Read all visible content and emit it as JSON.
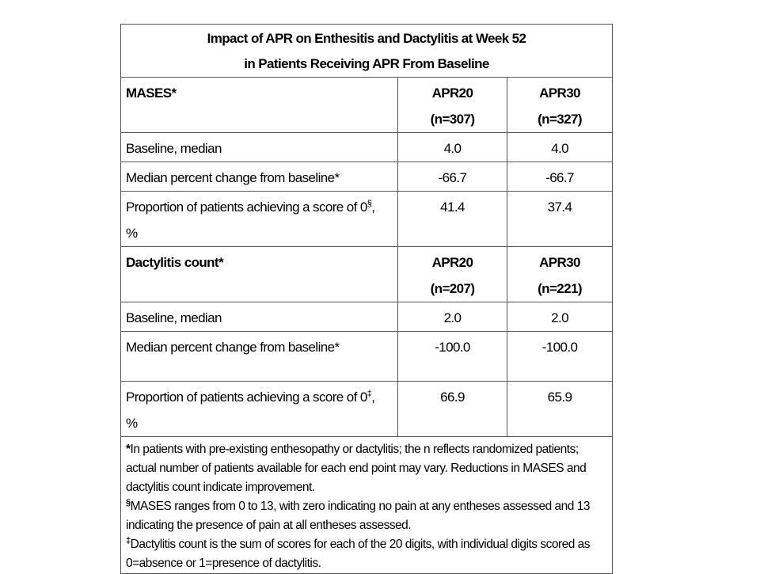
{
  "table": {
    "title": [
      "Impact of APR on Enthesitis and Dactylitis at Week 52",
      "in Patients Receiving APR From Baseline"
    ],
    "sections": [
      {
        "label": "MASES*",
        "columns": [
          [
            "APR20",
            "(n=307)"
          ],
          [
            "APR30",
            "(n=327)"
          ]
        ],
        "rows": [
          {
            "label": "Baseline, median",
            "values": [
              "4.0",
              "4.0"
            ]
          },
          {
            "label": "Median percent change from baseline*",
            "values": [
              "-66.7",
              "-66.7"
            ]
          },
          {
            "label": "Proportion of patients achieving a score of 0",
            "sup": "§",
            "suffix": ",",
            "unit": "%",
            "values": [
              "41.4",
              "37.4"
            ]
          }
        ]
      },
      {
        "label": "Dactylitis count*",
        "columns": [
          [
            "APR20",
            "(n=207)"
          ],
          [
            "APR30",
            "(n=221)"
          ]
        ],
        "rows": [
          {
            "label": "Baseline, median",
            "values": [
              "2.0",
              "2.0"
            ]
          },
          {
            "label": "Median percent change from baseline*",
            "values": [
              "-100.0",
              "-100.0"
            ]
          },
          {
            "label": "Proportion of patients achieving a score of 0",
            "sup": "‡",
            "suffix": ",",
            "unit": "%",
            "values": [
              "66.9",
              "65.9"
            ]
          }
        ]
      }
    ],
    "footnotes": [
      {
        "mark": "*",
        "text": "In patients with pre-existing enthesopathy or dactylitis; the n reflects randomized patients; actual number of patients available for each end point may vary. Reductions in MASES and dactylitis count indicate improvement."
      },
      {
        "mark": "§",
        "text": "MASES ranges from 0 to 13, with zero indicating no pain at any entheses assessed and 13 indicating the presence of pain at all entheses assessed."
      },
      {
        "mark": "‡",
        "text": "Dactylitis count is the sum of scores for each of the 20 digits, with individual digits scored as 0=absence or 1=presence of dactylitis."
      }
    ]
  }
}
